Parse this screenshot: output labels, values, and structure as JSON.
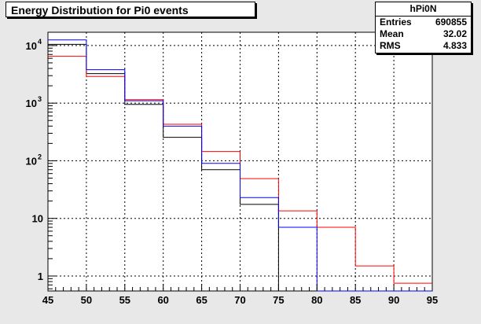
{
  "title": "Energy Distribution for Pi0 events",
  "stats": {
    "name": "hPi0N",
    "rows": [
      {
        "label": "Entries",
        "value": "690855"
      },
      {
        "label": "Mean",
        "value": "32.02"
      },
      {
        "label": "RMS",
        "value": "4.833"
      }
    ]
  },
  "chart_data": {
    "type": "histogram",
    "x_edges": [
      45,
      50,
      55,
      60,
      65,
      70,
      75,
      80,
      85,
      90,
      95
    ],
    "xlim": [
      45,
      95
    ],
    "ylim": [
      0.55,
      17000
    ],
    "y_scale": "log",
    "grid": true,
    "x_ticks": [
      "45",
      "50",
      "55",
      "60",
      "65",
      "70",
      "75",
      "80",
      "85",
      "90",
      "95"
    ],
    "y_ticks": [
      {
        "value": 1,
        "label": "1"
      },
      {
        "value": 10,
        "label": "10"
      },
      {
        "value": 100,
        "label": "10",
        "exp": "2"
      },
      {
        "value": 1000,
        "label": "10",
        "exp": "3"
      },
      {
        "value": 10000,
        "label": "10",
        "exp": "4"
      }
    ],
    "series": [
      {
        "color": "#000000",
        "values": [
          10500,
          3250,
          950,
          255,
          70,
          17.5,
          0,
          0,
          0,
          0
        ]
      },
      {
        "color": "#ff0000",
        "values": [
          6500,
          2900,
          1150,
          430,
          145,
          49,
          13.5,
          7,
          1.5,
          0.75
        ]
      },
      {
        "color": "#0000ff",
        "values": [
          12500,
          3800,
          1100,
          400,
          90,
          23,
          7,
          0,
          0,
          0
        ]
      }
    ]
  }
}
